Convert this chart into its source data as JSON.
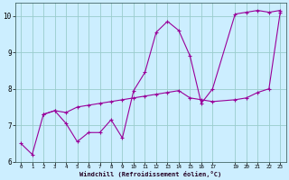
{
  "xlabel": "Windchill (Refroidissement éolien,°C)",
  "background_color": "#cceeff",
  "line_color": "#990099",
  "grid_color": "#99cccc",
  "line1_x": [
    0,
    1,
    2,
    3,
    4,
    5,
    6,
    7,
    8,
    9,
    10,
    11,
    12,
    13,
    14,
    15,
    16,
    17,
    19,
    20,
    21,
    22,
    23
  ],
  "line1_y": [
    6.5,
    6.2,
    7.3,
    7.4,
    7.05,
    6.55,
    6.8,
    6.8,
    7.15,
    6.65,
    7.95,
    8.45,
    9.55,
    9.85,
    9.6,
    8.9,
    7.6,
    8.0,
    10.05,
    10.1,
    10.15,
    10.1,
    10.15
  ],
  "line2_x": [
    2,
    3,
    4,
    5,
    6,
    7,
    8,
    9,
    10,
    11,
    12,
    13,
    14,
    15,
    16,
    17,
    19,
    20,
    21,
    22,
    23
  ],
  "line2_y": [
    7.3,
    7.4,
    7.35,
    7.5,
    7.55,
    7.6,
    7.65,
    7.7,
    7.75,
    7.8,
    7.85,
    7.9,
    7.95,
    7.75,
    7.7,
    7.65,
    7.7,
    7.75,
    7.9,
    8.0,
    10.1
  ],
  "xlim": [
    -0.5,
    23.5
  ],
  "ylim": [
    6.0,
    10.35
  ],
  "yticks": [
    6,
    7,
    8,
    9,
    10
  ],
  "xticks": [
    0,
    1,
    2,
    3,
    4,
    5,
    6,
    7,
    8,
    9,
    10,
    11,
    12,
    13,
    14,
    15,
    16,
    17,
    19,
    20,
    21,
    22,
    23
  ],
  "marker": "+",
  "markersize": 3,
  "linewidth": 0.8
}
